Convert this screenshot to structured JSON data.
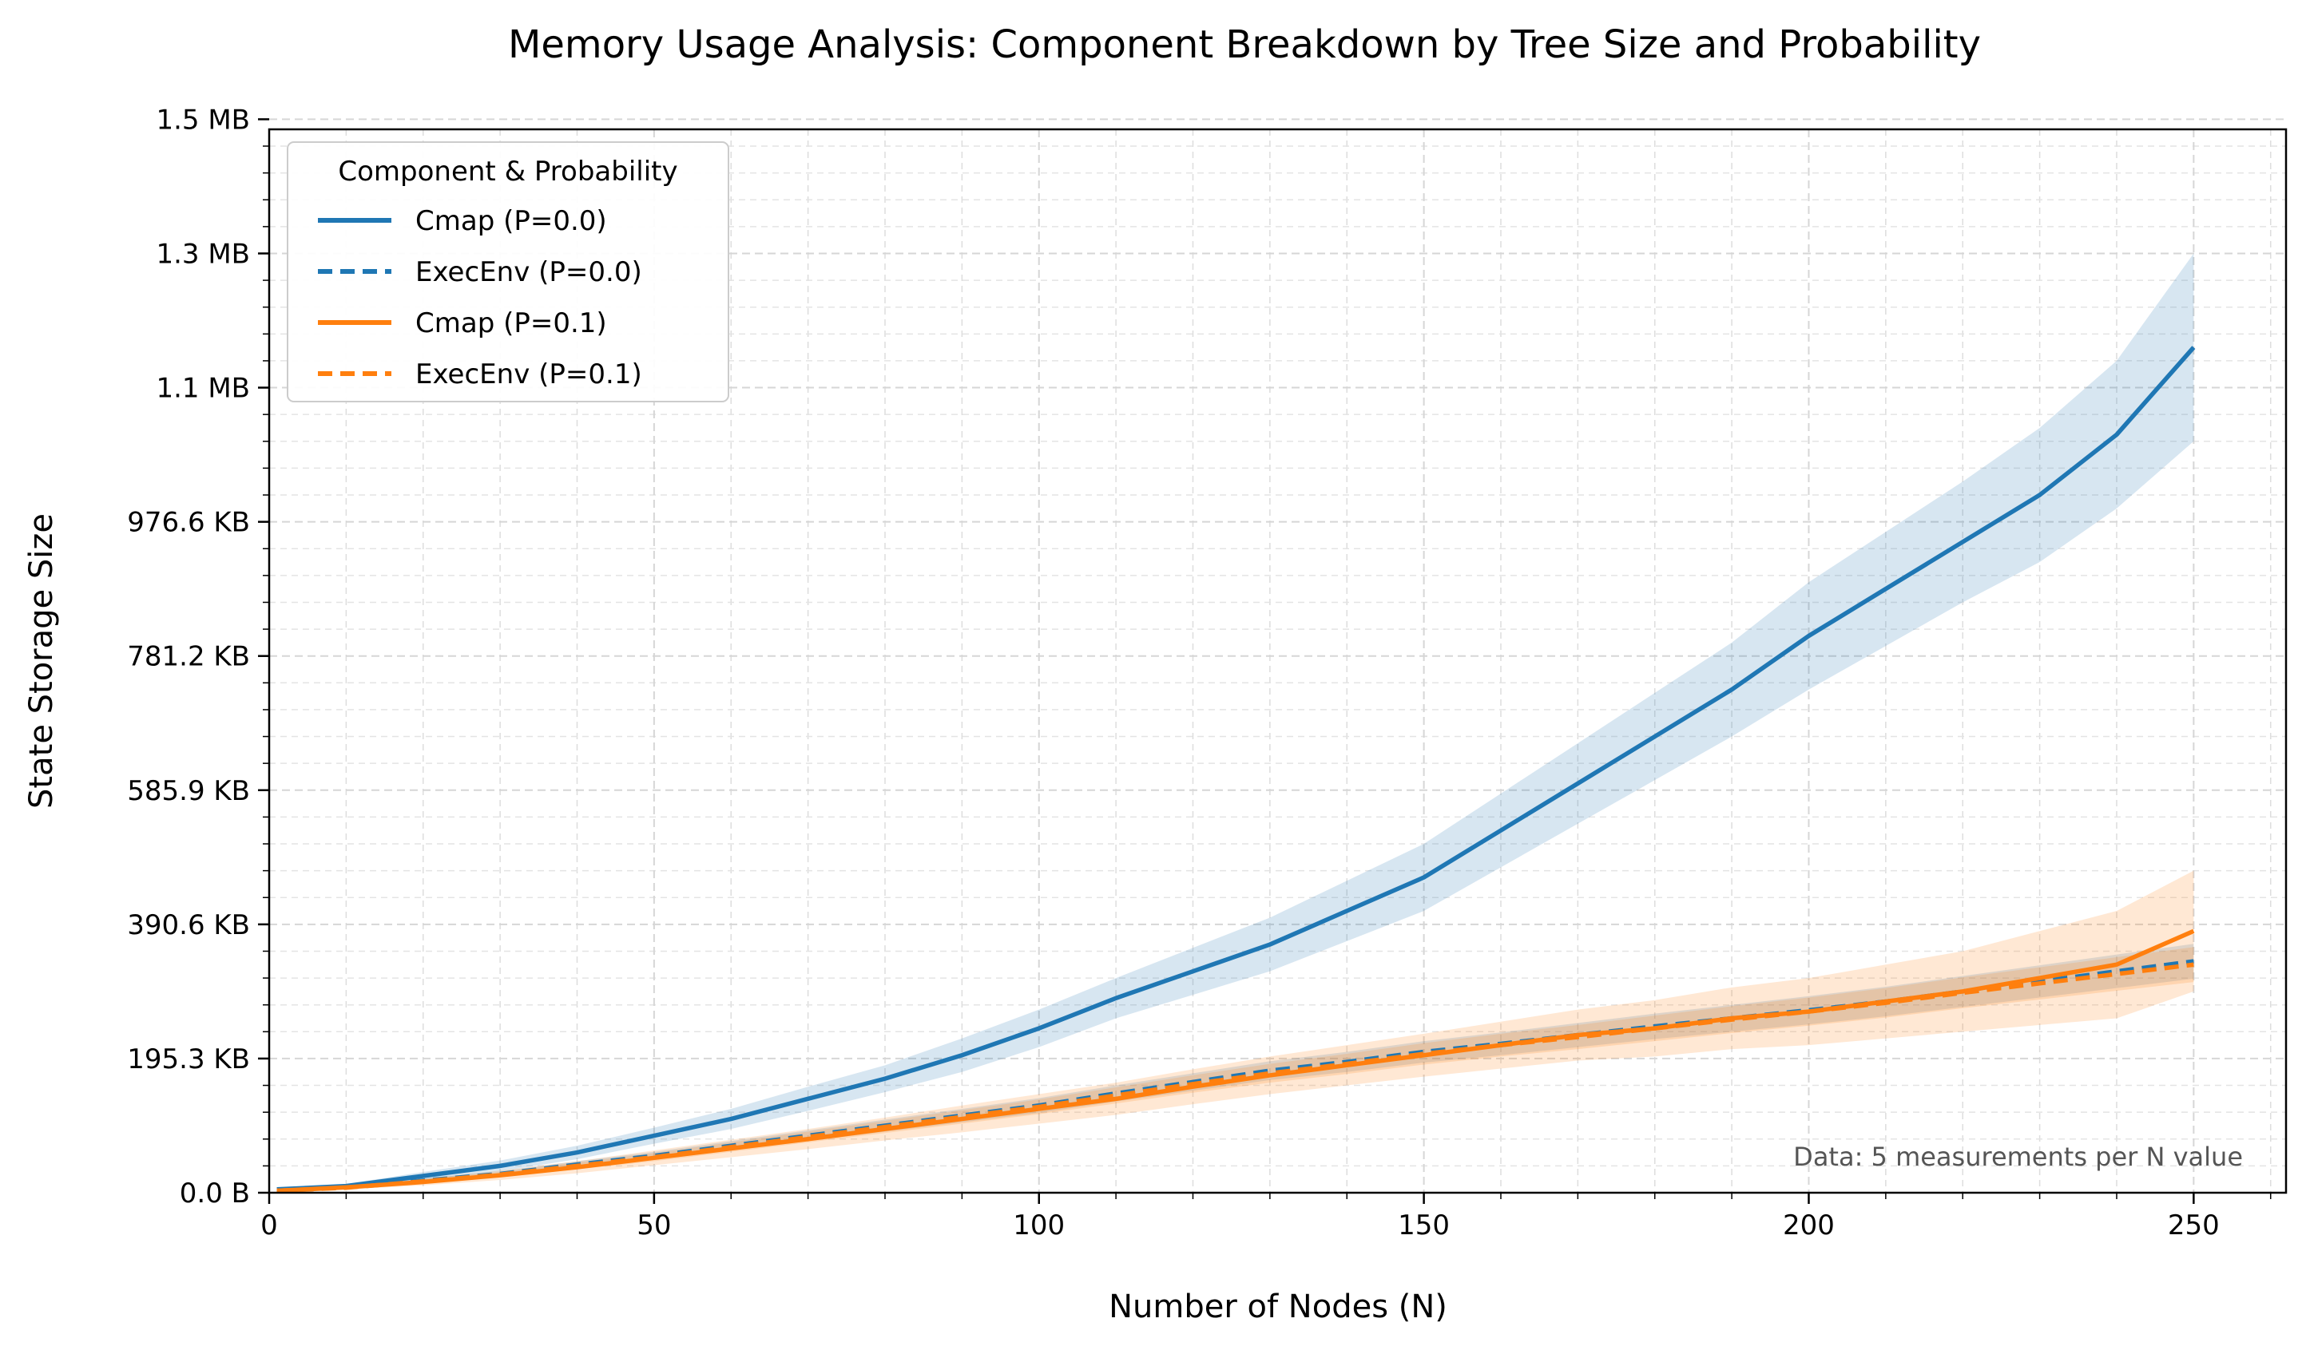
{
  "chart_data": {
    "type": "line",
    "title": "Memory Usage Analysis: Component Breakdown by Tree Size and Probability",
    "xlabel": "Number of Nodes (N)",
    "ylabel": "State Storage Size",
    "xlim": [
      0,
      262
    ],
    "ylim_bytes": [
      0,
      1585000
    ],
    "x_ticks": [
      0,
      50,
      100,
      150,
      200,
      250
    ],
    "y_ticks": [
      {
        "value": 0,
        "label": "0.0 B"
      },
      {
        "value": 200000,
        "label": "195.3 KB"
      },
      {
        "value": 400000,
        "label": "390.6 KB"
      },
      {
        "value": 600000,
        "label": "585.9 KB"
      },
      {
        "value": 800000,
        "label": "781.2 KB"
      },
      {
        "value": 1000000,
        "label": "976.6 KB"
      },
      {
        "value": 1200000,
        "label": "1.1 MB"
      },
      {
        "value": 1400000,
        "label": "1.3 MB"
      },
      {
        "value": 1600000,
        "label": "1.5 MB"
      }
    ],
    "grid": true,
    "legend": {
      "title": "Component & Probability",
      "placement": "top-left"
    },
    "annotation": "Data: 5 measurements per N value",
    "colors": {
      "p00": "#1f77b4",
      "p01": "#ff7f0e"
    },
    "series": [
      {
        "name": "Cmap (P=0.0)",
        "color": "#1f77b4",
        "dash": "solid",
        "x": [
          1,
          10,
          20,
          30,
          40,
          50,
          60,
          70,
          80,
          90,
          100,
          110,
          120,
          130,
          140,
          150,
          160,
          170,
          180,
          190,
          200,
          210,
          220,
          230,
          240,
          250
        ],
        "y": [
          5000,
          10000,
          25000,
          40000,
          60000,
          85000,
          110000,
          140000,
          170000,
          205000,
          245000,
          290000,
          330000,
          370000,
          420000,
          470000,
          540000,
          610000,
          680000,
          750000,
          830000,
          900000,
          970000,
          1040000,
          1130000,
          1260000
        ],
        "band": [
          2000,
          3000,
          6000,
          8000,
          10000,
          12000,
          15000,
          18000,
          20000,
          25000,
          28000,
          30000,
          35000,
          40000,
          45000,
          50000,
          55000,
          60000,
          65000,
          70000,
          80000,
          85000,
          90000,
          100000,
          110000,
          140000
        ]
      },
      {
        "name": "ExecEnv (P=0.0)",
        "color": "#1f77b4",
        "dash": "dashed",
        "x": [
          1,
          10,
          20,
          30,
          40,
          50,
          60,
          70,
          80,
          90,
          100,
          110,
          120,
          130,
          140,
          150,
          160,
          170,
          180,
          190,
          200,
          210,
          220,
          230,
          240,
          250
        ],
        "y": [
          3000,
          8000,
          18000,
          28000,
          42000,
          55000,
          70000,
          85000,
          100000,
          115000,
          130000,
          148000,
          165000,
          182000,
          195000,
          210000,
          222000,
          235000,
          248000,
          260000,
          272000,
          285000,
          300000,
          315000,
          330000,
          345000
        ],
        "band": [
          1000,
          2000,
          3000,
          4000,
          5000,
          6000,
          7000,
          8000,
          9000,
          10000,
          11000,
          12000,
          13000,
          14000,
          15000,
          16000,
          17000,
          18000,
          19000,
          20000,
          21000,
          22000,
          23000,
          24000,
          25000,
          26000
        ]
      },
      {
        "name": "Cmap (P=0.1)",
        "color": "#ff7f0e",
        "dash": "solid",
        "x": [
          1,
          10,
          20,
          30,
          40,
          50,
          60,
          70,
          80,
          90,
          100,
          110,
          120,
          130,
          140,
          150,
          160,
          170,
          180,
          190,
          200,
          210,
          220,
          230,
          240,
          250
        ],
        "y": [
          3000,
          8000,
          16000,
          26000,
          38000,
          52000,
          66000,
          80000,
          95000,
          110000,
          125000,
          140000,
          158000,
          175000,
          190000,
          205000,
          220000,
          235000,
          245000,
          260000,
          270000,
          285000,
          300000,
          320000,
          340000,
          390000
        ],
        "band": [
          2000,
          3000,
          5000,
          7000,
          9000,
          11000,
          13000,
          15000,
          17000,
          20000,
          22000,
          24000,
          26000,
          28000,
          30000,
          32000,
          35000,
          38000,
          42000,
          46000,
          50000,
          55000,
          60000,
          70000,
          80000,
          90000
        ]
      },
      {
        "name": "ExecEnv (P=0.1)",
        "color": "#ff7f0e",
        "dash": "dashed",
        "x": [
          1,
          10,
          20,
          30,
          40,
          50,
          60,
          70,
          80,
          90,
          100,
          110,
          120,
          130,
          140,
          150,
          160,
          170,
          180,
          190,
          200,
          210,
          220,
          230,
          240,
          250
        ],
        "y": [
          3000,
          7500,
          17000,
          27000,
          40000,
          53000,
          68000,
          83000,
          98000,
          113000,
          128000,
          145000,
          162000,
          178000,
          192000,
          207000,
          220000,
          232000,
          245000,
          258000,
          270000,
          283000,
          298000,
          312000,
          326000,
          340000
        ],
        "band": [
          1000,
          2000,
          3000,
          4000,
          5000,
          6000,
          7000,
          8000,
          9000,
          10000,
          11000,
          12000,
          13000,
          14000,
          15000,
          16000,
          17000,
          18000,
          19000,
          20000,
          21000,
          22000,
          23000,
          24000,
          25000,
          26000
        ]
      }
    ]
  }
}
